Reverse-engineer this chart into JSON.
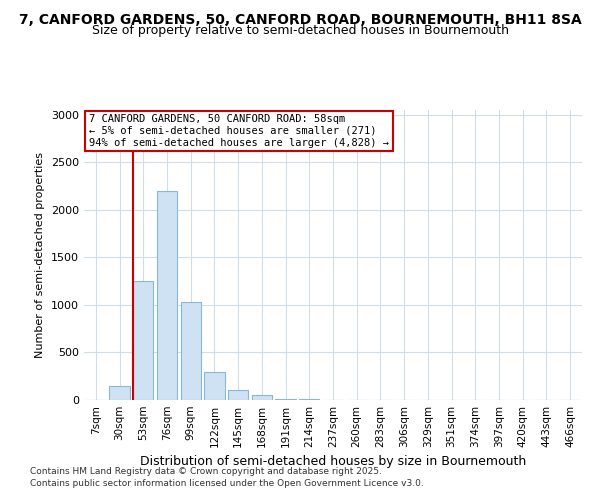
{
  "title1": "7, CANFORD GARDENS, 50, CANFORD ROAD, BOURNEMOUTH, BH11 8SA",
  "title2": "Size of property relative to semi-detached houses in Bournemouth",
  "xlabel": "Distribution of semi-detached houses by size in Bournemouth",
  "ylabel": "Number of semi-detached properties",
  "categories": [
    "7sqm",
    "30sqm",
    "53sqm",
    "76sqm",
    "99sqm",
    "122sqm",
    "145sqm",
    "168sqm",
    "191sqm",
    "214sqm",
    "237sqm",
    "260sqm",
    "283sqm",
    "306sqm",
    "329sqm",
    "351sqm",
    "374sqm",
    "397sqm",
    "420sqm",
    "443sqm",
    "466sqm"
  ],
  "values": [
    0,
    150,
    1250,
    2200,
    1030,
    290,
    100,
    50,
    15,
    8,
    5,
    3,
    2,
    1,
    1,
    0,
    0,
    0,
    0,
    0,
    0
  ],
  "bar_color": "#cfe2f3",
  "bar_edge_color": "#88b8d8",
  "vline_color": "#cc0000",
  "vline_bar_index": 2,
  "annotation_text": "7 CANFORD GARDENS, 50 CANFORD ROAD: 58sqm\n← 5% of semi-detached houses are smaller (271)\n94% of semi-detached houses are larger (4,828) →",
  "annotation_box_facecolor": "#ffffff",
  "annotation_box_edgecolor": "#cc0000",
  "ylim": [
    0,
    3050
  ],
  "yticks": [
    0,
    500,
    1000,
    1500,
    2000,
    2500,
    3000
  ],
  "footer1": "Contains HM Land Registry data © Crown copyright and database right 2025.",
  "footer2": "Contains public sector information licensed under the Open Government Licence v3.0.",
  "bg_color": "#ffffff",
  "plot_bg_color": "#ffffff",
  "grid_color": "#d0dce8",
  "title1_fontsize": 10,
  "title2_fontsize": 9,
  "ylabel_fontsize": 8,
  "xlabel_fontsize": 9
}
